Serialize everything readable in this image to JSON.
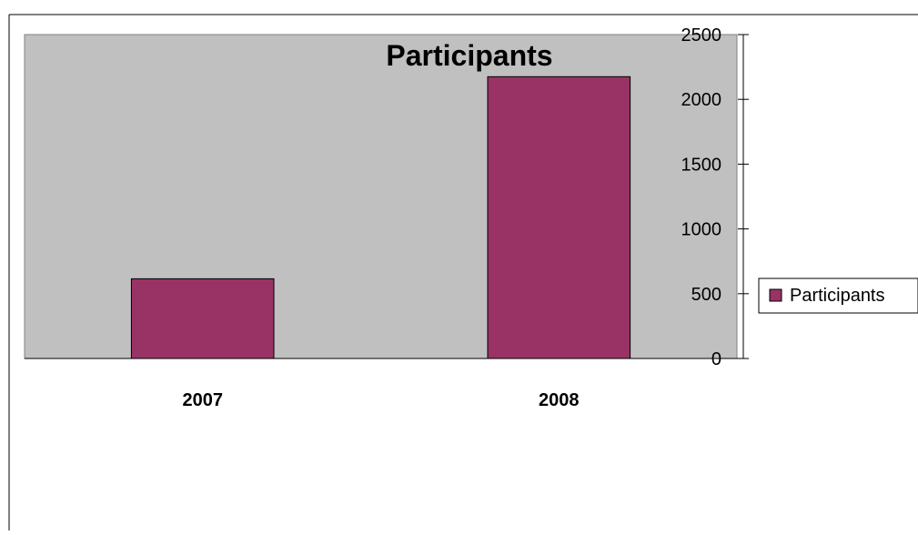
{
  "chart_data": {
    "type": "bar",
    "title": "Participants",
    "categories": [
      "2007",
      "2008"
    ],
    "series": [
      {
        "name": "Participants",
        "values": [
          615,
          2175
        ]
      }
    ],
    "ylim": [
      0,
      2500
    ],
    "yticks": [
      0,
      500,
      1000,
      1500,
      2000,
      2500
    ],
    "xlabel": "",
    "ylabel": "",
    "grid": false,
    "legend": "right",
    "colors": {
      "plot_background": "#c0c0c0",
      "bar_fill": "#993366",
      "bar_stroke": "#000000",
      "axis": "#000000"
    }
  }
}
